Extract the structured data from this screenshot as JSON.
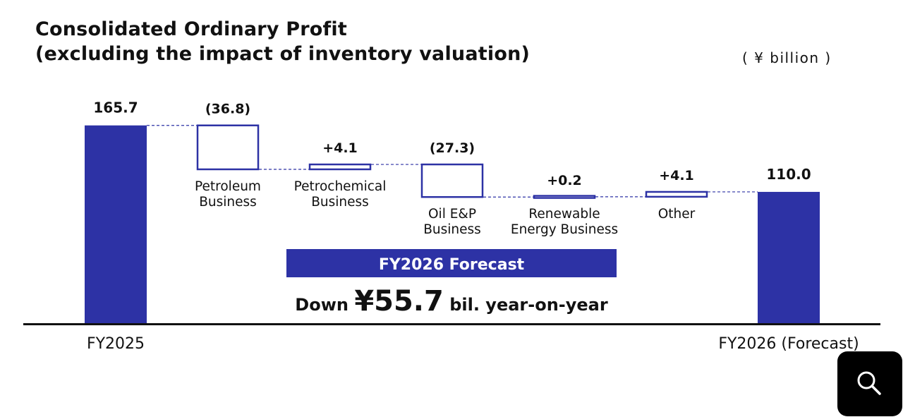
{
  "title": {
    "line1": "Consolidated Ordinary Profit",
    "line2": "(excluding the impact of inventory valuation)"
  },
  "unit_label": "( ¥ billion )",
  "chart_data": {
    "type": "bar",
    "subtype": "waterfall",
    "title": "Consolidated Ordinary Profit (excluding the impact of inventory valuation)",
    "unit": "¥ billion",
    "steps": [
      {
        "category": "FY2025",
        "label_lines": [
          "FY2025"
        ],
        "kind": "total",
        "value": 165.7,
        "value_label": "165.7"
      },
      {
        "category": "Petroleum Business",
        "label_lines": [
          "Petroleum",
          "Business"
        ],
        "kind": "delta",
        "value": -36.8,
        "value_label": "(36.8)"
      },
      {
        "category": "Petrochemical Business",
        "label_lines": [
          "Petrochemical",
          "Business"
        ],
        "kind": "delta",
        "value": 4.1,
        "value_label": "+4.1"
      },
      {
        "category": "Oil E&P Business",
        "label_lines": [
          "Oil E&P",
          "Business"
        ],
        "kind": "delta",
        "value": -27.3,
        "value_label": "(27.3)"
      },
      {
        "category": "Renewable Energy Business",
        "label_lines": [
          "Renewable",
          "Energy Business"
        ],
        "kind": "delta",
        "value": 0.2,
        "value_label": "+0.2"
      },
      {
        "category": "Other",
        "label_lines": [
          "Other"
        ],
        "kind": "delta",
        "value": 4.1,
        "value_label": "+4.1"
      },
      {
        "category": "FY2026 (Forecast)",
        "label_lines": [
          "FY2026 (Forecast)"
        ],
        "kind": "total",
        "value": 110.0,
        "value_label": "110.0"
      }
    ],
    "ylim": [
      0,
      165.7
    ],
    "grid": false,
    "legend": false,
    "colors": {
      "bar": "#2d32a5",
      "outline": "#2d32a5",
      "axis": "#111111",
      "connector": "#2d32a5"
    }
  },
  "forecast_box": {
    "heading": "FY2026 Forecast",
    "text_prefix": "Down ",
    "amount": "¥55.7",
    "text_suffix": " bil. year-on-year",
    "color": "#2d32a5"
  },
  "search_icon": "search-icon"
}
